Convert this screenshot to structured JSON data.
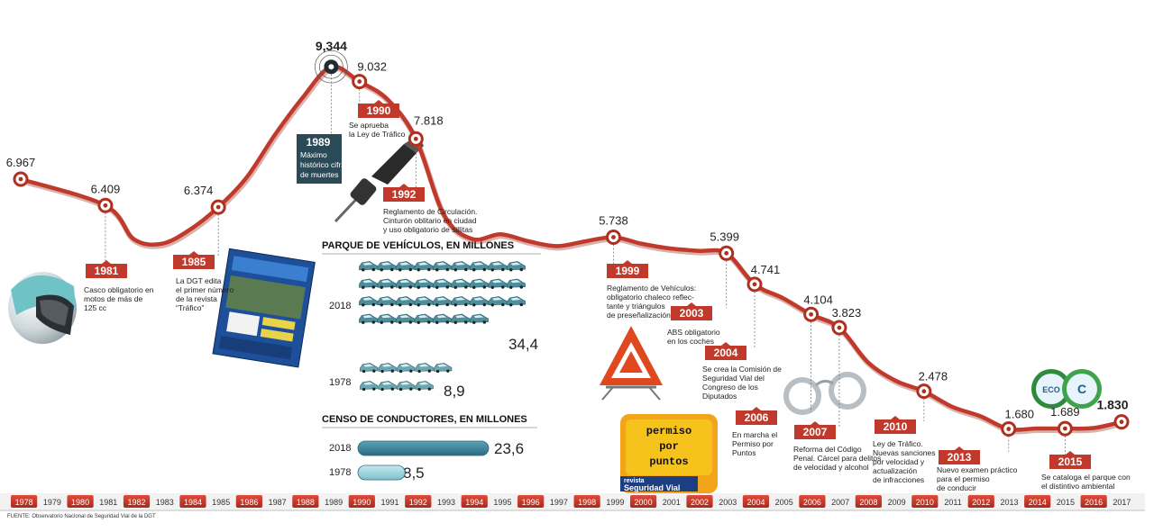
{
  "chart_data": {
    "type": "line",
    "series": [
      {
        "x": [
          1978,
          1981,
          1985,
          1989,
          1990,
          1992,
          1999,
          2003,
          2004,
          2006,
          2007,
          2010,
          2013,
          2015,
          2017
        ],
        "values": [
          6967,
          6409,
          6374,
          9344,
          9032,
          7818,
          5738,
          5399,
          4741,
          4104,
          3823,
          2478,
          1680,
          1689,
          1830
        ],
        "value_labels": [
          "6.967",
          "6.409",
          "6.374",
          "9,344",
          "9.032",
          "7.818",
          "5.738",
          "5.399",
          "4.741",
          "4.104",
          "3.823",
          "2.478",
          "1.680",
          "1.689",
          "1.830"
        ]
      }
    ],
    "unlabeled_path": [
      {
        "x": 1982,
        "y": 5700
      },
      {
        "x": 1983,
        "y": 5600
      },
      {
        "x": 1984,
        "y": 5900
      },
      {
        "x": 1986,
        "y": 7000
      },
      {
        "x": 1987,
        "y": 7900
      },
      {
        "x": 1988,
        "y": 8700
      },
      {
        "x": 1991,
        "y": 8650
      },
      {
        "x": 1993,
        "y": 6200
      },
      {
        "x": 1994,
        "y": 5700
      },
      {
        "x": 1995,
        "y": 5800
      },
      {
        "x": 1996,
        "y": 5650
      },
      {
        "x": 1997,
        "y": 5550
      },
      {
        "x": 1998,
        "y": 5650
      },
      {
        "x": 2000,
        "y": 5600
      },
      {
        "x": 2001,
        "y": 5500
      },
      {
        "x": 2002,
        "y": 5450
      },
      {
        "x": 2005,
        "y": 4450
      },
      {
        "x": 2008,
        "y": 3100
      },
      {
        "x": 2009,
        "y": 2700
      },
      {
        "x": 2011,
        "y": 2150
      },
      {
        "x": 2012,
        "y": 1950
      },
      {
        "x": 2014,
        "y": 1690
      },
      {
        "x": 2016,
        "y": 1700
      }
    ],
    "x_ticks": [
      "1978",
      "1979",
      "1980",
      "1981",
      "1982",
      "1983",
      "1984",
      "1985",
      "1986",
      "1987",
      "1988",
      "1989",
      "1990",
      "1991",
      "1992",
      "1993",
      "1994",
      "1995",
      "1996",
      "1997",
      "1998",
      "1999",
      "2000",
      "2001",
      "2002",
      "2003",
      "2004",
      "2005",
      "2006",
      "2007",
      "2008",
      "2009",
      "2010",
      "2011",
      "2012",
      "2013",
      "2014",
      "2015",
      "2016",
      "2017"
    ],
    "x_range": [
      1978,
      2017
    ],
    "y_range": [
      1500,
      9500
    ],
    "grid": false,
    "legend": "none",
    "highlight_color": "#c0392b"
  },
  "events": [
    {
      "year": "1981",
      "year_index": 3,
      "lines": [
        "Casco obligatorio en",
        "motos de más de",
        "125 cc"
      ]
    },
    {
      "year": "1985",
      "year_index": 7,
      "lines": [
        "La DGT edita",
        "el primer número",
        "de la revista",
        "“Tráfico”"
      ]
    },
    {
      "year": "1989",
      "year_index": 11,
      "lines": [
        "Máximo",
        "histórico cifra",
        "de muertes"
      ]
    },
    {
      "year": "1990",
      "year_index": 12,
      "lines": [
        "Se aprueba",
        "la Ley de Tráfico"
      ]
    },
    {
      "year": "1992",
      "year_index": 14,
      "lines": [
        "Reglamento de  Circulación.",
        "Cinturón oblitario en ciudad",
        "y uso obligatorio de sillitas"
      ]
    },
    {
      "year": "1999",
      "year_index": 21,
      "lines": [
        "Reglamento de Vehículos:",
        "obligatorio chaleco reflec-",
        "tante y  triángulos",
        "de preseñalización"
      ]
    },
    {
      "year": "2003",
      "year_index": 25,
      "lines": [
        "ABS obligatorio",
        "en los coches"
      ]
    },
    {
      "year": "2004",
      "year_index": 26,
      "lines": [
        "Se crea la Comisión de",
        "Seguridad Vial del",
        "Congreso de los",
        "Diputados"
      ]
    },
    {
      "year": "2006",
      "year_index": 28,
      "lines": [
        "En marcha el",
        "Permiso por",
        "Puntos"
      ]
    },
    {
      "year": "2007",
      "year_index": 29,
      "lines": [
        "Reforma del Código",
        "Penal. Cárcel para delitos",
        "de velocidad y alcohol"
      ]
    },
    {
      "year": "2010",
      "year_index": 32,
      "lines": [
        "Ley de Tráfico.",
        "Nuevas sanciones",
        "por velocidad y",
        "actualización",
        "de infracciones"
      ]
    },
    {
      "year": "2013",
      "year_index": 35,
      "lines": [
        "Nuevo examen práctico",
        "para el permiso",
        "de conducir"
      ]
    },
    {
      "year": "2015",
      "year_index": 37,
      "lines": [
        "Se cataloga el parque con",
        "el  distintivo ambiental"
      ]
    }
  ],
  "vehicles": {
    "title": "PARQUE DE VEHÍCULOS, EN MILLONES",
    "rows": [
      {
        "year": "2018",
        "value": "34,4",
        "number": 34.4
      },
      {
        "year": "1978",
        "value": "8,9",
        "number": 8.9
      }
    ]
  },
  "drivers": {
    "title": "CENSO DE CONDUCTORES, EN MILLONES",
    "rows": [
      {
        "year": "2018",
        "value": "23,6",
        "number": 23.6
      },
      {
        "year": "1978",
        "value": "8,5",
        "number": 8.5
      }
    ]
  },
  "permiso_logo": {
    "words": [
      "permiso",
      "por",
      "puntos"
    ],
    "brand_top": "revista",
    "brand_bottom": "Seguridad Vial"
  },
  "environmental_badges": [
    "ECO",
    "C"
  ],
  "source": "FUENTE: Observatorio Nacional de Seguridad Vial de la DGT",
  "colors": {
    "line": "#c0392b",
    "event_box": "#c0392b",
    "event_box_dark": "#2b4a57",
    "car": "#4c8e9c",
    "bar": "#3f7f95",
    "bar_light": "#9fd1d8"
  }
}
